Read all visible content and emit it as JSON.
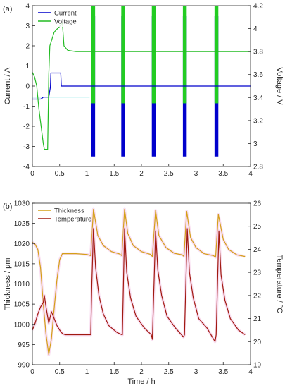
{
  "chart_data": [
    {
      "type": "line",
      "panel_label": "(a)",
      "xlabel": "",
      "ylabel": "Current / A",
      "y2label": "Voltage / V",
      "xlim": [
        0,
        4
      ],
      "ylim": [
        -4,
        4
      ],
      "y2lim": [
        2.8,
        4.2
      ],
      "xticks": [
        "0",
        "0.5",
        "1",
        "1.5",
        "2",
        "2.5",
        "3",
        "3.5",
        "4"
      ],
      "yticks": [
        "-4",
        "-3",
        "-2",
        "-1",
        "0",
        "1",
        "2",
        "3",
        "4"
      ],
      "y2ticks": [
        "2.8",
        "3",
        "3.2",
        "3.4",
        "3.6",
        "3.8",
        "4",
        "4.2"
      ],
      "grid": false,
      "legend": "top-left",
      "series": [
        {
          "name": "Current",
          "axis": "left",
          "color": "#0000cc",
          "x": [
            0,
            0.15,
            0.18,
            0.2,
            0.21,
            0.3,
            0.33,
            0.34,
            0.52,
            0.53,
            4.0
          ],
          "y": [
            -0.65,
            -0.65,
            -0.6,
            -0.55,
            -0.55,
            -0.55,
            -0.05,
            0.65,
            0.65,
            0,
            0
          ],
          "pulses": {
            "x": [
              1.08,
              1.63,
              2.19,
              2.76,
              3.34
            ],
            "width": 0.07,
            "min": -3.5,
            "max": 3.5,
            "color": "#0000cc"
          }
        },
        {
          "name": "Voltage",
          "axis": "right",
          "color": "#22bb22",
          "x": [
            0,
            0.04,
            0.08,
            0.12,
            0.16,
            0.2,
            0.22,
            0.24,
            0.28,
            0.3,
            0.32,
            0.4,
            0.5,
            0.55,
            0.58,
            0.65,
            0.8,
            1.0,
            4.0
          ],
          "y": [
            3.62,
            3.58,
            3.5,
            3.3,
            3.15,
            3.0,
            2.95,
            2.95,
            2.95,
            3.6,
            3.85,
            3.97,
            4.02,
            4.05,
            3.85,
            3.81,
            3.8,
            3.8,
            3.8
          ],
          "pulses": {
            "x": [
              1.08,
              1.63,
              2.19,
              2.76,
              3.34
            ],
            "width": 0.07,
            "min": 3.35,
            "max": 4.2,
            "color": "#22cc22"
          }
        }
      ],
      "reference_lines": [
        {
          "axis": "left",
          "y": -0.55,
          "x": [
            0,
            1.05
          ],
          "color": "#00cccc"
        }
      ]
    },
    {
      "type": "line",
      "panel_label": "(b)",
      "xlabel": "Time / h",
      "ylabel": "Thickness / μm",
      "y2label": "Temperature / °C",
      "xlim": [
        0,
        4
      ],
      "ylim": [
        990,
        1030
      ],
      "y2lim": [
        19,
        26
      ],
      "xticks": [
        "0",
        "0.5",
        "1",
        "1.5",
        "2",
        "2.5",
        "3",
        "3.5",
        "4"
      ],
      "yticks": [
        "990",
        "995",
        "1000",
        "1005",
        "1010",
        "1015",
        "1020",
        "1025",
        "1030"
      ],
      "y2ticks": [
        "19",
        "20",
        "21",
        "22",
        "23",
        "24",
        "25",
        "26"
      ],
      "grid": false,
      "legend": "top-left",
      "series": [
        {
          "name": "Thickness",
          "axis": "left",
          "color": "#d4a017",
          "x": [
            0,
            0.05,
            0.1,
            0.15,
            0.2,
            0.25,
            0.3,
            0.35,
            0.4,
            0.45,
            0.5,
            0.55,
            0.6,
            0.8,
            1.0,
            1.07,
            1.12,
            1.2,
            1.3,
            1.45,
            1.6,
            1.64,
            1.69,
            1.75,
            1.85,
            2.0,
            2.17,
            2.2,
            2.26,
            2.32,
            2.45,
            2.6,
            2.75,
            2.78,
            2.83,
            2.9,
            3.0,
            3.15,
            3.32,
            3.36,
            3.41,
            3.5,
            3.6,
            3.75,
            3.9
          ],
          "y": [
            1020.3,
            1019.8,
            1018.5,
            1014.0,
            1005.0,
            997.5,
            992.5,
            996.5,
            1004.0,
            1011.0,
            1016.0,
            1017.5,
            1017.5,
            1017.5,
            1017.3,
            1017.0,
            1028.5,
            1022.0,
            1019.5,
            1018.0,
            1017.4,
            1017.0,
            1028.5,
            1022.5,
            1019.5,
            1018.0,
            1017.3,
            1016.8,
            1028.2,
            1022.0,
            1019.0,
            1017.6,
            1017.2,
            1016.8,
            1028.0,
            1021.5,
            1019.0,
            1017.5,
            1017.0,
            1016.6,
            1027.2,
            1021.0,
            1018.5,
            1017.2,
            1016.8
          ]
        },
        {
          "name": "Temperature",
          "axis": "right",
          "color": "#a01a10",
          "x": [
            0,
            0.05,
            0.1,
            0.15,
            0.2,
            0.22,
            0.25,
            0.3,
            0.35,
            0.4,
            0.45,
            0.5,
            0.55,
            0.6,
            0.8,
            1.0,
            1.07,
            1.09,
            1.12,
            1.16,
            1.22,
            1.3,
            1.4,
            1.55,
            1.64,
            1.65,
            1.69,
            1.73,
            1.8,
            1.9,
            2.05,
            2.18,
            2.2,
            2.26,
            2.3,
            2.37,
            2.47,
            2.62,
            2.77,
            2.79,
            2.84,
            2.88,
            2.95,
            3.05,
            3.2,
            3.35,
            3.37,
            3.42,
            3.46,
            3.53,
            3.63,
            3.78,
            3.9
          ],
          "y": [
            20.5,
            20.8,
            21.2,
            21.5,
            21.7,
            22.0,
            21.5,
            20.8,
            21.3,
            21.0,
            20.7,
            20.5,
            20.35,
            20.3,
            20.3,
            20.3,
            20.3,
            22.5,
            24.9,
            23.2,
            22.0,
            21.2,
            20.7,
            20.4,
            20.3,
            20.3,
            24.9,
            23.0,
            21.9,
            21.1,
            20.6,
            20.3,
            20.1,
            24.8,
            23.1,
            22.0,
            21.1,
            20.6,
            20.2,
            20.3,
            24.9,
            23.0,
            21.9,
            21.0,
            20.6,
            20.0,
            20.3,
            24.8,
            22.9,
            21.8,
            21.0,
            20.5,
            20.3
          ]
        }
      ]
    }
  ]
}
